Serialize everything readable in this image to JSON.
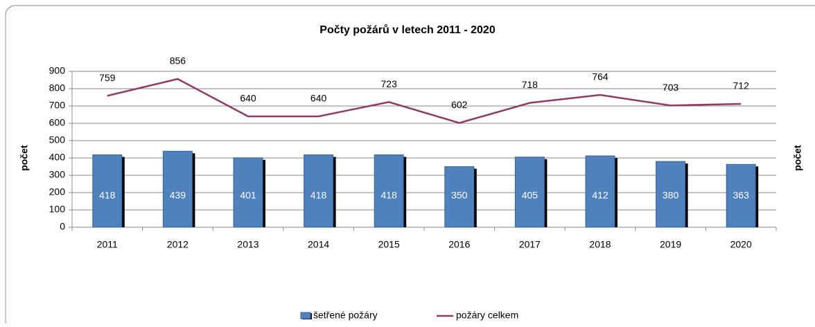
{
  "chart_data": {
    "type": "bar",
    "title": "Počty požárů v letech 2011 - 2020",
    "ylabel": "počet",
    "y2label": "počet",
    "categories": [
      "2011",
      "2012",
      "2013",
      "2014",
      "2015",
      "2016",
      "2017",
      "2018",
      "2019",
      "2020"
    ],
    "series": [
      {
        "name": "šetřené požáry",
        "type": "bar",
        "color": "#4f81bd",
        "values": [
          418,
          439,
          401,
          418,
          418,
          350,
          405,
          412,
          380,
          363
        ]
      },
      {
        "name": "požáry celkem",
        "type": "line",
        "color": "#8e3a66",
        "values": [
          759,
          856,
          640,
          640,
          723,
          602,
          718,
          764,
          703,
          712
        ]
      }
    ],
    "ylim": [
      0,
      900
    ],
    "yticks": [
      0,
      100,
      200,
      300,
      400,
      500,
      600,
      700,
      800,
      900
    ],
    "grid": true,
    "legend": "bottom"
  }
}
